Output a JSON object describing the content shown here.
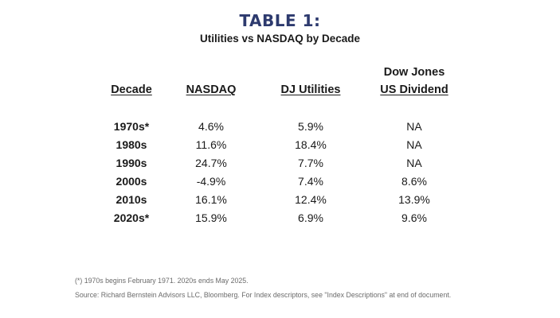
{
  "title": "TABLE 1:",
  "subtitle": "Utilities vs NASDAQ by Decade",
  "table": {
    "headers": {
      "decade": "Decade",
      "nasdaq": "NASDAQ",
      "dj_utilities": "DJ Utilities",
      "dow_jones_line1": "Dow Jones",
      "dow_jones_line2": "US Dividend"
    },
    "rows": [
      {
        "decade": "1970s*",
        "nasdaq": "4.6%",
        "dj_utilities": "5.9%",
        "dj_us_dividend": "NA"
      },
      {
        "decade": "1980s",
        "nasdaq": "11.6%",
        "dj_utilities": "18.4%",
        "dj_us_dividend": "NA"
      },
      {
        "decade": "1990s",
        "nasdaq": "24.7%",
        "dj_utilities": "7.7%",
        "dj_us_dividend": "NA"
      },
      {
        "decade": "2000s",
        "nasdaq": "-4.9%",
        "dj_utilities": "7.4%",
        "dj_us_dividend": "8.6%"
      },
      {
        "decade": "2010s",
        "nasdaq": "16.1%",
        "dj_utilities": "12.4%",
        "dj_us_dividend": "13.9%"
      },
      {
        "decade": "2020s*",
        "nasdaq": "15.9%",
        "dj_utilities": "6.9%",
        "dj_us_dividend": "9.6%"
      }
    ]
  },
  "footnote": "(*) 1970s begins February 1971. 2020s ends May 2025.",
  "source": "Source: Richard Bernstein Advisors LLC, Bloomberg. For Index descriptors, see \"Index Descriptions\" at end of document.",
  "colors": {
    "title": "#2d3a6e",
    "text": "#1a1a1a",
    "footnote": "#6b6b6b"
  }
}
